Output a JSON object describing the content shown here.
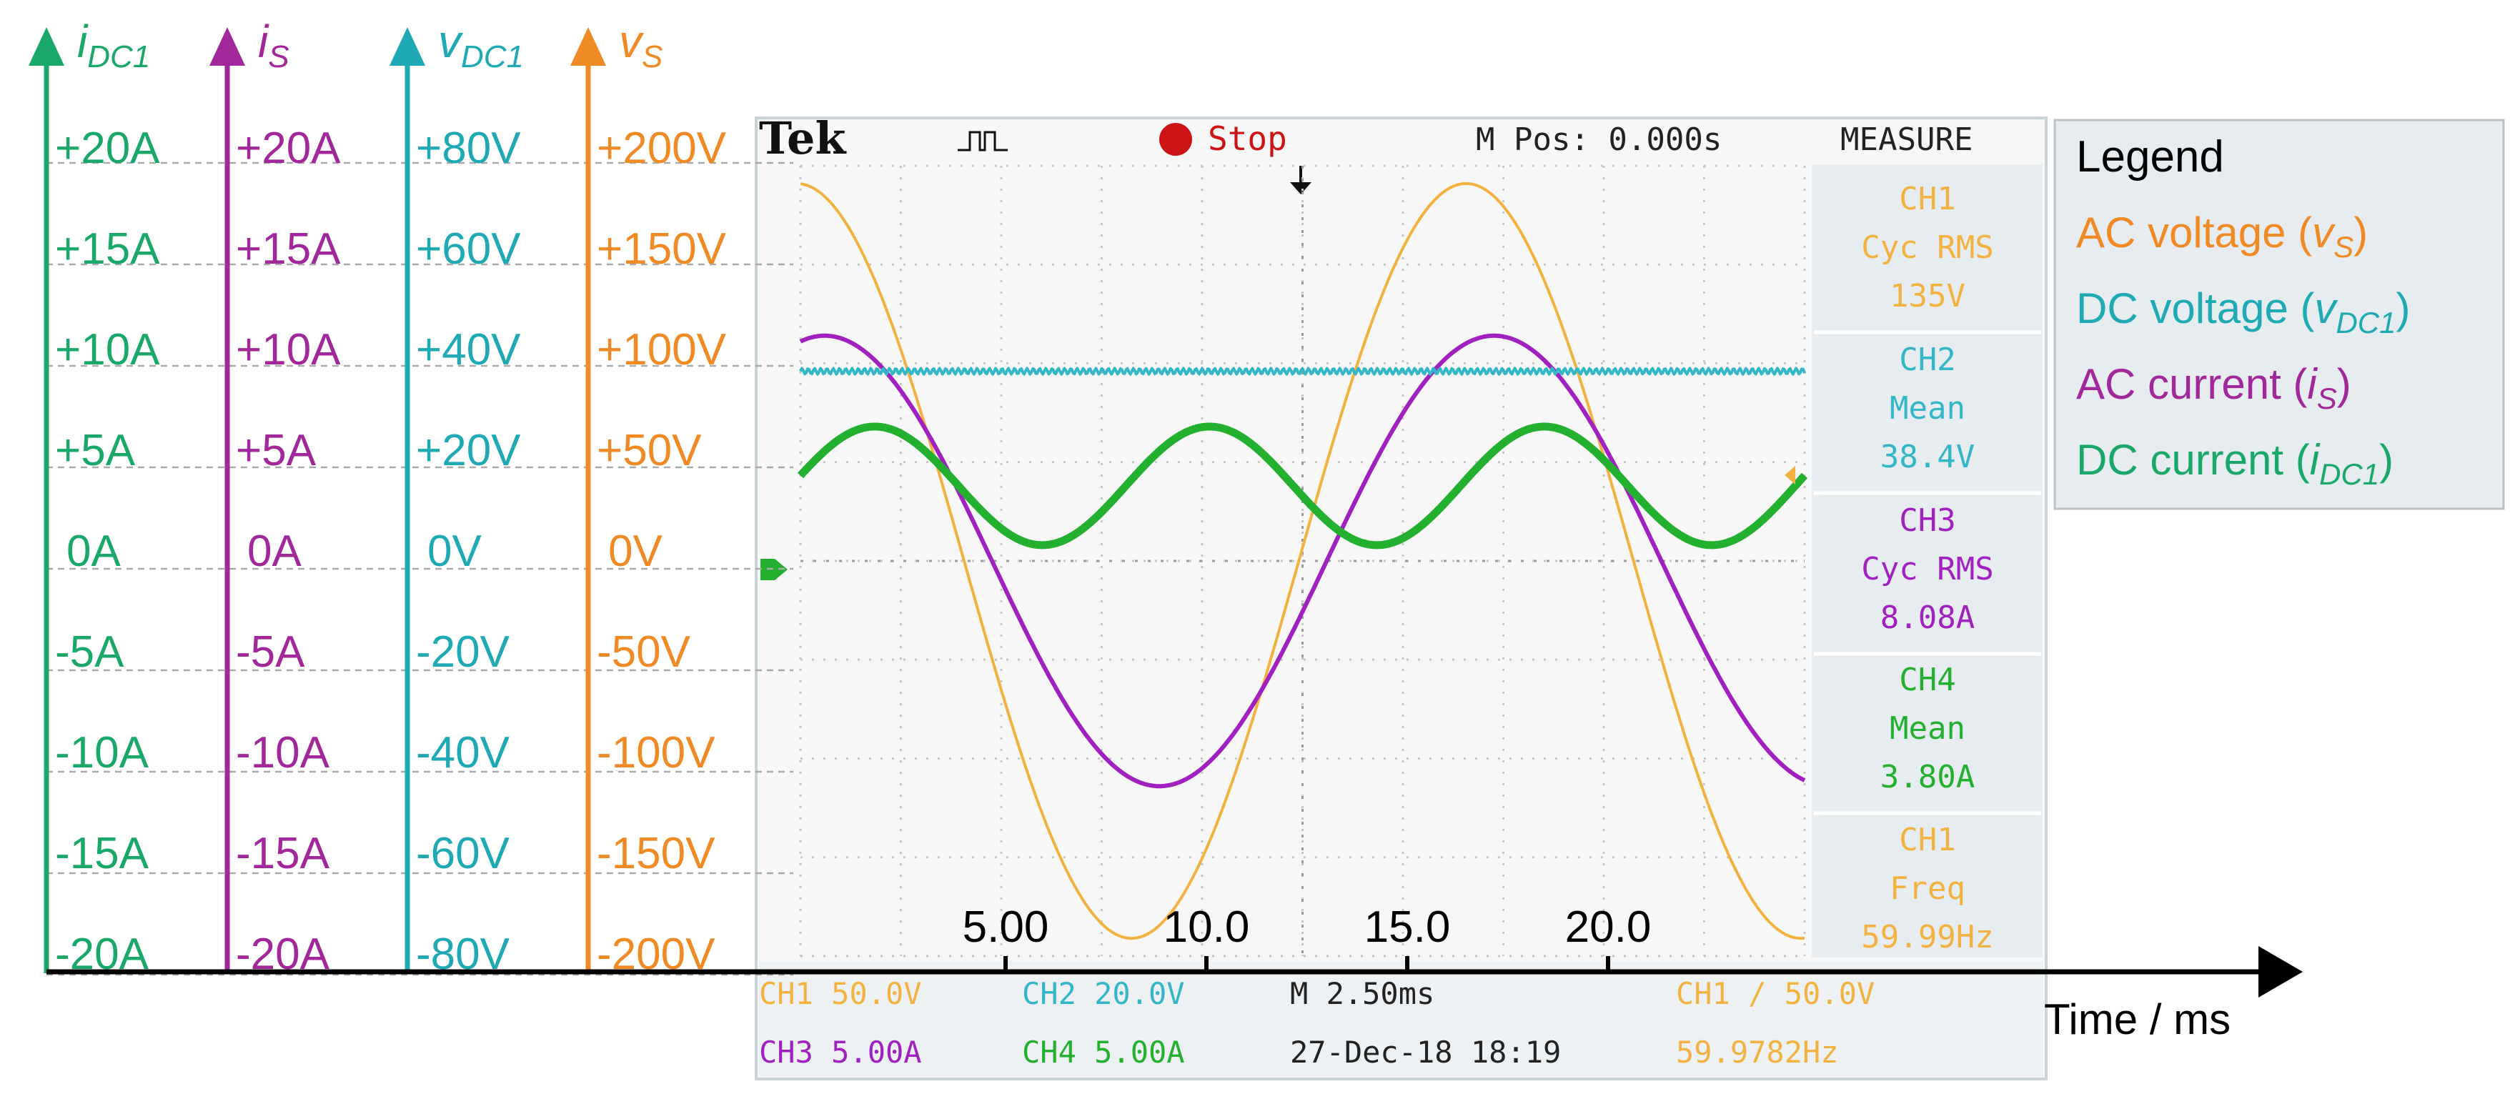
{
  "colors": {
    "green": "#1aa86a",
    "purple": "#a2279a",
    "teal": "#1ea9b4",
    "orange": "#f08a24",
    "scope_ch1": "#f3b23f",
    "scope_ch2": "#33b6c7",
    "scope_ch3": "#a020c0",
    "scope_ch4": "#22b02e",
    "scope_bg": "#f7f7f7",
    "scope_panel": "#e6ecef"
  },
  "axes": {
    "i_dc1": {
      "symbol": "i",
      "sub": "DC1",
      "ticks": [
        "+20A",
        "+15A",
        "+10A",
        "+5A",
        "0A",
        "-5A",
        "-10A",
        "-15A",
        "-20A"
      ]
    },
    "i_s": {
      "symbol": "i",
      "sub": "S",
      "ticks": [
        "+20A",
        "+15A",
        "+10A",
        "+5A",
        "0A",
        "-5A",
        "-10A",
        "-15A",
        "-20A"
      ]
    },
    "v_dc1": {
      "symbol": "v",
      "sub": "DC1",
      "ticks": [
        "+80V",
        "+60V",
        "+40V",
        "+20V",
        "0V",
        "-20V",
        "-40V",
        "-60V",
        "-80V"
      ]
    },
    "v_s": {
      "symbol": "v",
      "sub": "S",
      "ticks": [
        "+200V",
        "+150V",
        "+100V",
        "+50V",
        "0V",
        "-50V",
        "-100V",
        "-150V",
        "-200V"
      ]
    }
  },
  "time_axis": {
    "label": "Time / ms",
    "ticks": [
      "5.00",
      "10.0",
      "15.0",
      "20.0"
    ]
  },
  "scope": {
    "brand": "Tek",
    "stop": "Stop",
    "mpos": "M Pos: 0.000s",
    "measure_title": "MEASURE",
    "measure": [
      {
        "lines": [
          "CH1",
          "Cyc RMS",
          "135V"
        ],
        "color_key": "scope_ch1"
      },
      {
        "lines": [
          "CH2",
          "Mean",
          "38.4V"
        ],
        "color_key": "scope_ch2"
      },
      {
        "lines": [
          "CH3",
          "Cyc RMS",
          "8.08A"
        ],
        "color_key": "scope_ch3"
      },
      {
        "lines": [
          "CH4",
          "Mean",
          "3.80A"
        ],
        "color_key": "scope_ch4"
      },
      {
        "lines": [
          "CH1",
          "Freq",
          "59.99Hz"
        ],
        "color_key": "scope_ch1"
      }
    ],
    "footer": {
      "ch1": "CH1  50.0V",
      "ch2": "CH2  20.0V",
      "timebase": "M 2.50ms",
      "trigger": "CH1 ∕ 50.0V",
      "ch3": "CH3  5.00A",
      "ch4": "CH4  5.00A",
      "date": "27-Dec-18 18:19",
      "freq": "59.9782Hz"
    }
  },
  "legend": {
    "title": "Legend",
    "items": [
      {
        "text": "AC voltage (",
        "symbol": "v",
        "sub": "S",
        "close": ")",
        "color_key": "orange"
      },
      {
        "text": "DC voltage (",
        "symbol": "v",
        "sub": "DC1",
        "close": ")",
        "color_key": "teal"
      },
      {
        "text": "AC current (",
        "symbol": "i",
        "sub": "S",
        "close": ")",
        "color_key": "purple"
      },
      {
        "text": "DC current (",
        "symbol": "i",
        "sub": "DC1",
        "close": ")",
        "color_key": "green"
      }
    ]
  },
  "chart_data": {
    "type": "line",
    "title": "",
    "xlabel": "Time / ms",
    "xlim": [
      0,
      25
    ],
    "x_ticks": [
      5,
      10,
      15,
      20
    ],
    "series": [
      {
        "name": "AC voltage (vS)",
        "unit": "V",
        "ylim": [
          -200,
          200
        ],
        "amplitude": 191,
        "freq_hz": 60,
        "phase_deg": 92,
        "offset": 0
      },
      {
        "name": "DC voltage (vDC1)",
        "unit": "V",
        "ylim": [
          -80,
          80
        ],
        "amplitude": 0,
        "freq_hz": 0,
        "phase_deg": 0,
        "offset": 38.4
      },
      {
        "name": "AC current (iS)",
        "unit": "A",
        "ylim": [
          -20,
          20
        ],
        "amplitude": 11.4,
        "freq_hz": 60,
        "phase_deg": 77,
        "offset": 0
      },
      {
        "name": "DC current (iDC1)",
        "unit": "A",
        "ylim": [
          -20,
          20
        ],
        "amplitude": 3.0,
        "freq_hz": 120,
        "phase_deg": 10,
        "offset": 3.8
      }
    ]
  }
}
